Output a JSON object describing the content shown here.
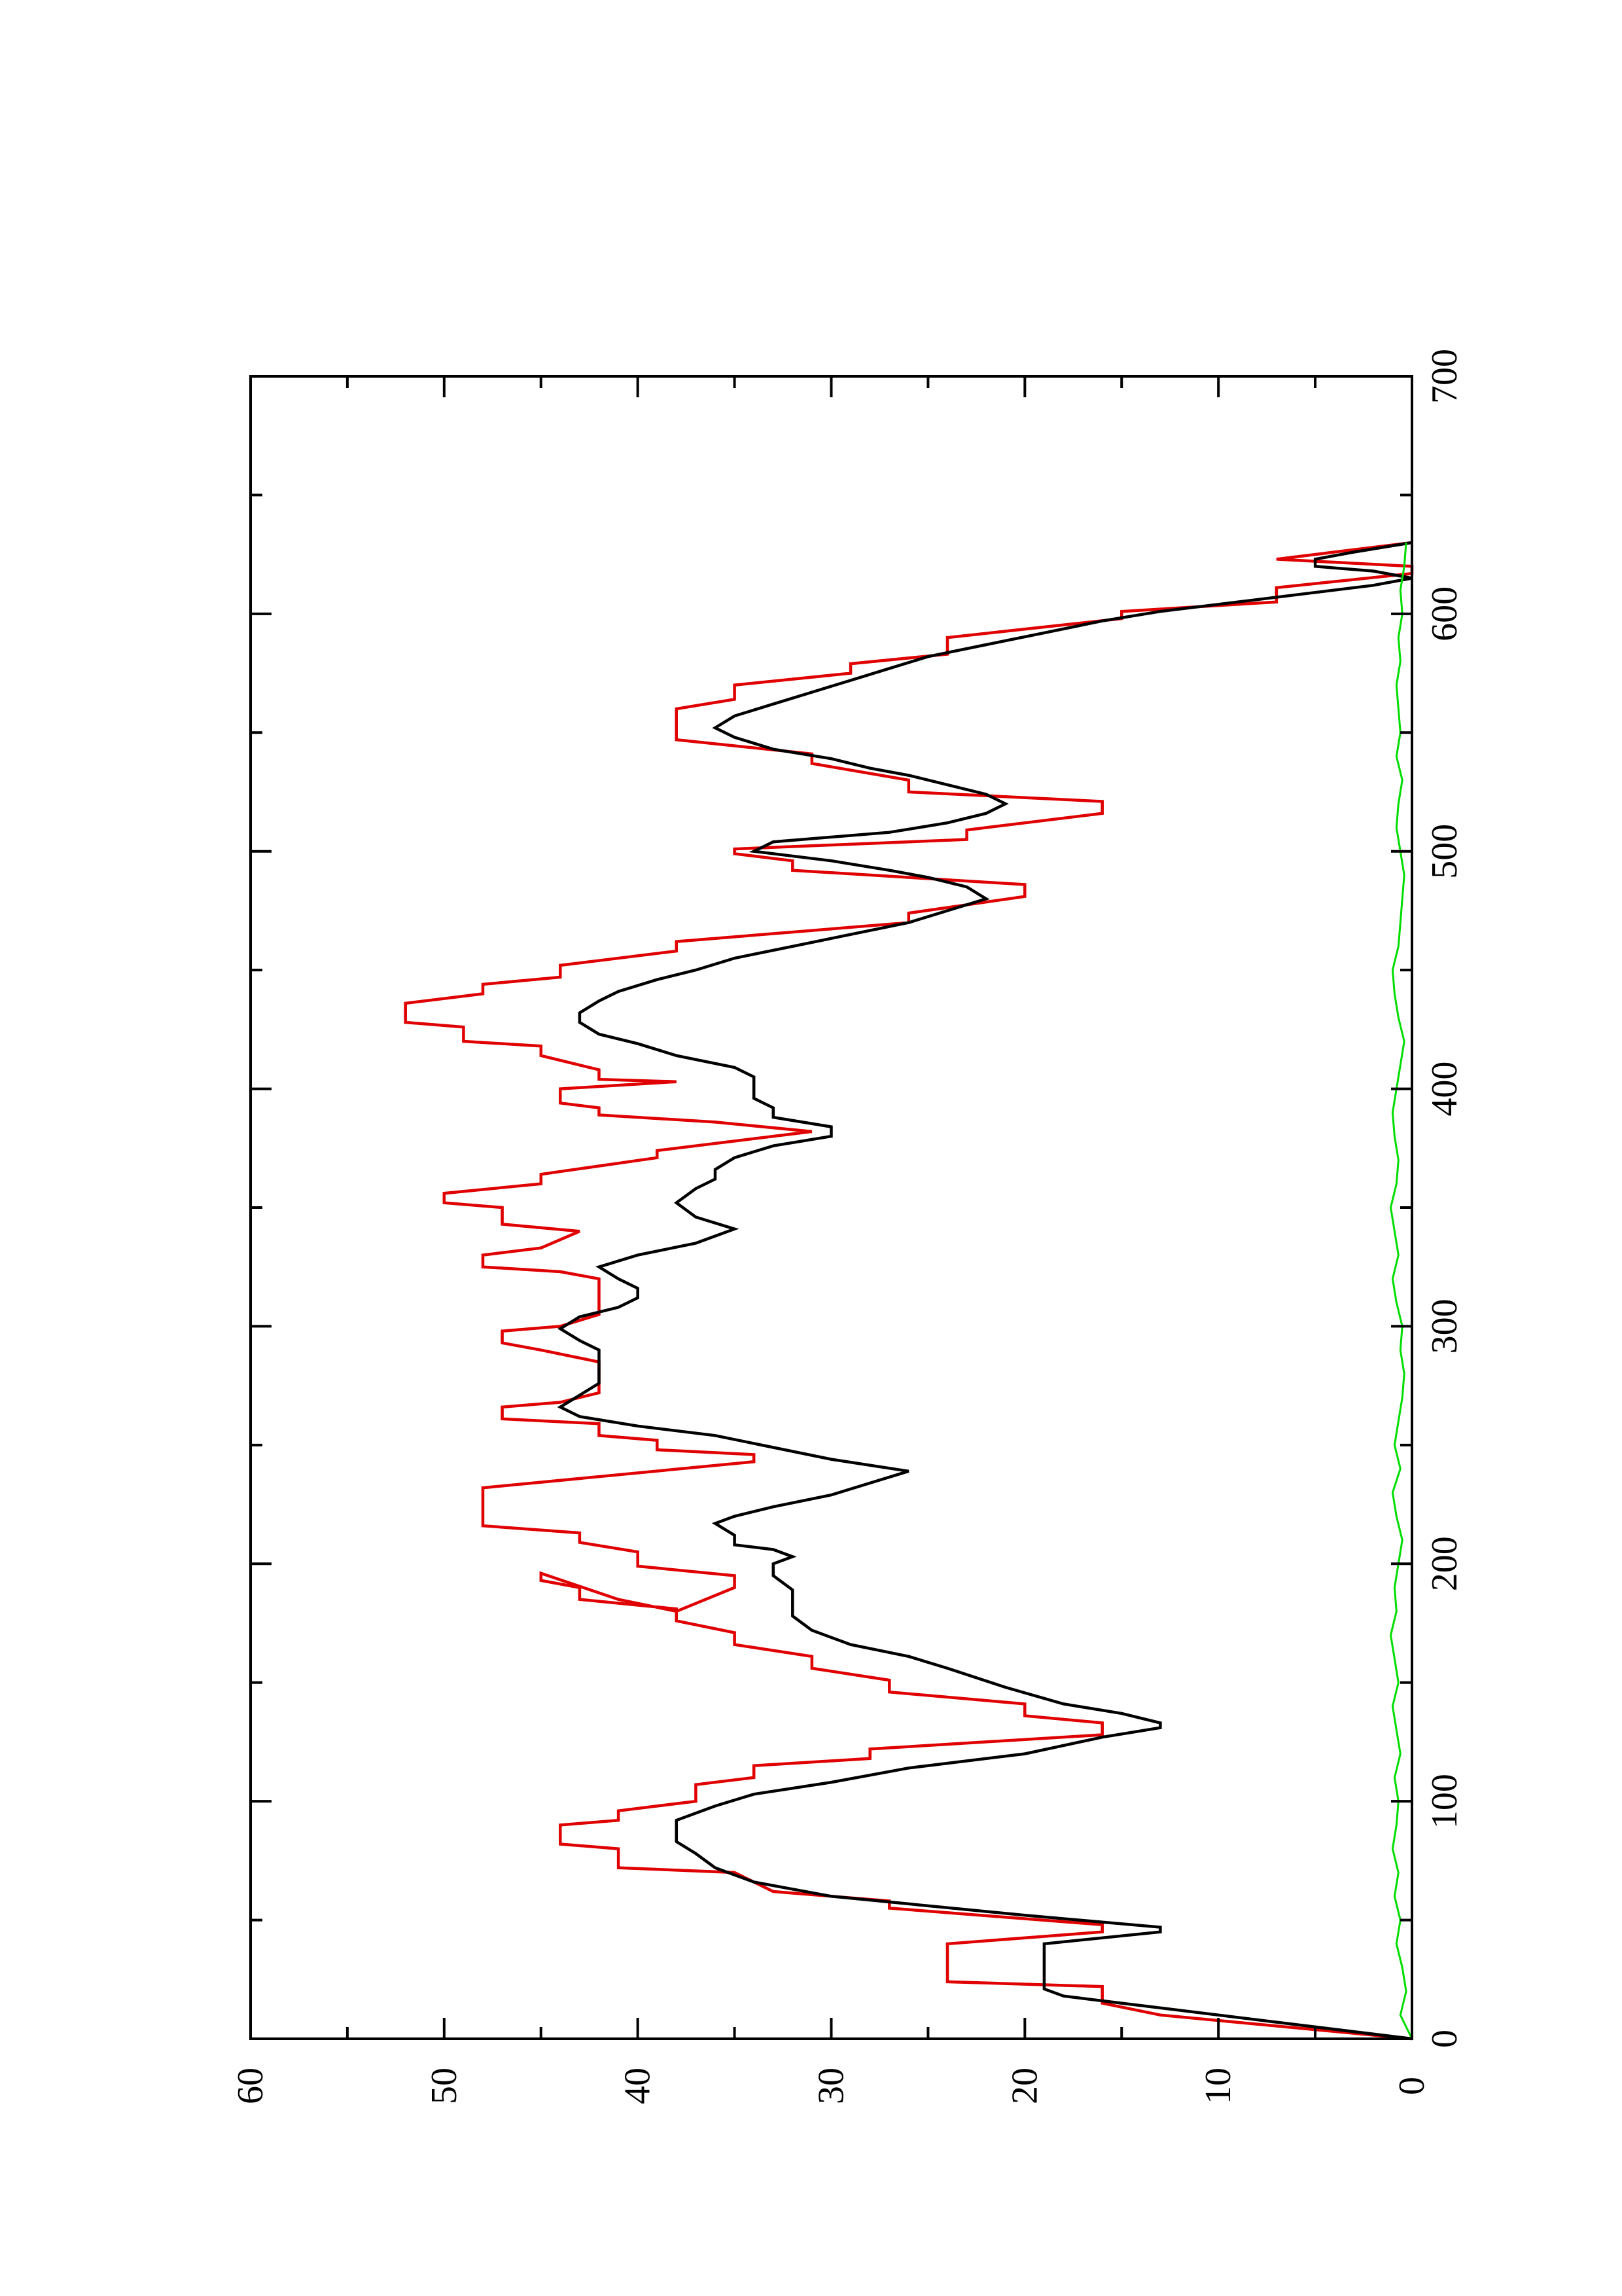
{
  "chart_data": {
    "type": "line",
    "orientation": "rotated-90-ccw",
    "title": "",
    "xlabel": "",
    "ylabel": "",
    "xlim": [
      0,
      700
    ],
    "ylim": [
      0,
      60
    ],
    "xticks": [
      "0",
      "100",
      "200",
      "300",
      "400",
      "500",
      "600",
      "700"
    ],
    "yticks": [
      "0",
      "10",
      "20",
      "30",
      "40",
      "50",
      "60"
    ],
    "grid": false,
    "legend": "none",
    "series": [
      {
        "color": "#e00000",
        "step": true,
        "points": [
          [
            0,
            0
          ],
          [
            10,
            13
          ],
          [
            15,
            16
          ],
          [
            22,
            16
          ],
          [
            24,
            24
          ],
          [
            40,
            24
          ],
          [
            45,
            16
          ],
          [
            48,
            16
          ],
          [
            55,
            27
          ],
          [
            58,
            27
          ],
          [
            62,
            33
          ],
          [
            70,
            35
          ],
          [
            72,
            41
          ],
          [
            80,
            41
          ],
          [
            82,
            44
          ],
          [
            90,
            44
          ],
          [
            92,
            41
          ],
          [
            96,
            41
          ],
          [
            100,
            37
          ],
          [
            107,
            37
          ],
          [
            110,
            34
          ],
          [
            115,
            34
          ],
          [
            118,
            28
          ],
          [
            122,
            28
          ],
          [
            128,
            16
          ],
          [
            133,
            16
          ],
          [
            136,
            20
          ],
          [
            141,
            20
          ],
          [
            146,
            27
          ],
          [
            151,
            27
          ],
          [
            156,
            31
          ],
          [
            161,
            31
          ],
          [
            166,
            35
          ],
          [
            171,
            35
          ],
          [
            176,
            38
          ],
          [
            181,
            38
          ],
          [
            185,
            43
          ],
          [
            190,
            43
          ],
          [
            193,
            45
          ],
          [
            196,
            45
          ],
          [
            185,
            41
          ],
          [
            180,
            38
          ],
          [
            190,
            35
          ],
          [
            195,
            35
          ],
          [
            199,
            40
          ],
          [
            205,
            40
          ],
          [
            209,
            43
          ],
          [
            213,
            43
          ],
          [
            216,
            48
          ],
          [
            232,
            48
          ],
          [
            243,
            34
          ],
          [
            246,
            34
          ],
          [
            248,
            39
          ],
          [
            252,
            39
          ],
          [
            254,
            42
          ],
          [
            259,
            42
          ],
          [
            261,
            47
          ],
          [
            266,
            47
          ],
          [
            268,
            44
          ],
          [
            272,
            42
          ],
          [
            285,
            42
          ],
          [
            290,
            45
          ],
          [
            293,
            47
          ],
          [
            298,
            47
          ],
          [
            300,
            44
          ],
          [
            305,
            42
          ],
          [
            320,
            42
          ],
          [
            323,
            44
          ],
          [
            325,
            48
          ],
          [
            330,
            48
          ],
          [
            333,
            45
          ],
          [
            340,
            43
          ],
          [
            343,
            47
          ],
          [
            350,
            47
          ],
          [
            352,
            50
          ],
          [
            356,
            50
          ],
          [
            360,
            45
          ],
          [
            364,
            45
          ],
          [
            371,
            39
          ],
          [
            374,
            39
          ],
          [
            382,
            31
          ],
          [
            386,
            36
          ],
          [
            389,
            42
          ],
          [
            392,
            42
          ],
          [
            394,
            44
          ],
          [
            400,
            44
          ],
          [
            403,
            38
          ],
          [
            404,
            42
          ],
          [
            408,
            42
          ],
          [
            414,
            45
          ],
          [
            418,
            45
          ],
          [
            420,
            49
          ],
          [
            426,
            49
          ],
          [
            428,
            52
          ],
          [
            436,
            52
          ],
          [
            440,
            48
          ],
          [
            444,
            48
          ],
          [
            447,
            44
          ],
          [
            452,
            44
          ],
          [
            458,
            38
          ],
          [
            462,
            38
          ],
          [
            470,
            26
          ],
          [
            474,
            26
          ],
          [
            481,
            20
          ],
          [
            486,
            20
          ],
          [
            492,
            32
          ],
          [
            496,
            32
          ],
          [
            499,
            35
          ],
          [
            501,
            35
          ],
          [
            505,
            23
          ],
          [
            509,
            23
          ],
          [
            516,
            16
          ],
          [
            521,
            16
          ],
          [
            525,
            26
          ],
          [
            530,
            26
          ],
          [
            537,
            31
          ],
          [
            541,
            31
          ],
          [
            547,
            38
          ],
          [
            560,
            38
          ],
          [
            564,
            35
          ],
          [
            570,
            35
          ],
          [
            575,
            29
          ],
          [
            579,
            29
          ],
          [
            583,
            24
          ],
          [
            590,
            24
          ],
          [
            598,
            15
          ],
          [
            601,
            15
          ],
          [
            605,
            7
          ],
          [
            611,
            7
          ],
          [
            617,
            0
          ],
          [
            620,
            0
          ],
          [
            623,
            7
          ],
          [
            625,
            5
          ],
          [
            630,
            0
          ]
        ]
      },
      {
        "color": "#000000",
        "step": false,
        "points": [
          [
            0,
            0
          ],
          [
            15,
            15
          ],
          [
            18,
            18
          ],
          [
            21,
            19
          ],
          [
            25,
            19
          ],
          [
            40,
            19
          ],
          [
            45,
            13
          ],
          [
            47,
            13
          ],
          [
            52,
            20
          ],
          [
            60,
            30
          ],
          [
            66,
            34
          ],
          [
            72,
            36
          ],
          [
            78,
            37
          ],
          [
            83,
            38
          ],
          [
            88,
            38
          ],
          [
            92,
            38
          ],
          [
            98,
            36
          ],
          [
            103,
            34
          ],
          [
            108,
            30
          ],
          [
            114,
            26
          ],
          [
            120,
            20
          ],
          [
            127,
            16
          ],
          [
            131,
            13
          ],
          [
            133,
            13
          ],
          [
            137,
            15
          ],
          [
            141,
            18
          ],
          [
            148,
            21
          ],
          [
            156,
            24
          ],
          [
            161,
            26
          ],
          [
            166,
            29
          ],
          [
            172,
            31
          ],
          [
            178,
            32
          ],
          [
            184,
            32
          ],
          [
            189,
            32
          ],
          [
            195,
            33
          ],
          [
            200,
            33
          ],
          [
            203,
            32
          ],
          [
            206,
            33
          ],
          [
            208,
            35
          ],
          [
            212,
            35
          ],
          [
            217,
            36
          ],
          [
            220,
            35
          ],
          [
            224,
            33
          ],
          [
            229,
            30
          ],
          [
            234,
            28
          ],
          [
            239,
            26
          ],
          [
            244,
            30
          ],
          [
            249,
            33
          ],
          [
            254,
            36
          ],
          [
            258,
            40
          ],
          [
            262,
            43
          ],
          [
            266,
            44
          ],
          [
            271,
            43
          ],
          [
            276,
            42
          ],
          [
            283,
            42
          ],
          [
            290,
            42
          ],
          [
            294,
            43
          ],
          [
            299,
            44
          ],
          [
            304,
            43
          ],
          [
            308,
            41
          ],
          [
            312,
            40
          ],
          [
            316,
            40
          ],
          [
            320,
            41
          ],
          [
            325,
            42
          ],
          [
            330,
            40
          ],
          [
            335,
            37
          ],
          [
            341,
            35
          ],
          [
            346,
            37
          ],
          [
            352,
            38
          ],
          [
            358,
            37
          ],
          [
            362,
            36
          ],
          [
            366,
            36
          ],
          [
            371,
            35
          ],
          [
            376,
            33
          ],
          [
            380,
            30
          ],
          [
            384,
            30
          ],
          [
            388,
            33
          ],
          [
            392,
            33
          ],
          [
            396,
            34
          ],
          [
            400,
            34
          ],
          [
            405,
            34
          ],
          [
            409,
            35
          ],
          [
            414,
            38
          ],
          [
            419,
            40
          ],
          [
            423,
            42
          ],
          [
            428,
            43
          ],
          [
            432,
            43
          ],
          [
            437,
            42
          ],
          [
            441,
            41
          ],
          [
            446,
            39
          ],
          [
            450,
            37
          ],
          [
            455,
            35
          ],
          [
            460,
            32
          ],
          [
            465,
            29
          ],
          [
            470,
            26
          ],
          [
            475,
            24
          ],
          [
            480,
            22
          ],
          [
            485,
            23
          ],
          [
            489,
            25
          ],
          [
            492,
            27
          ],
          [
            496,
            30
          ],
          [
            500,
            34
          ],
          [
            504,
            33
          ],
          [
            508,
            27
          ],
          [
            512,
            24
          ],
          [
            516,
            22
          ],
          [
            520,
            21
          ],
          [
            524,
            22
          ],
          [
            528,
            24
          ],
          [
            532,
            26
          ],
          [
            535,
            28
          ],
          [
            539,
            30
          ],
          [
            543,
            33
          ],
          [
            548,
            35
          ],
          [
            552,
            36
          ],
          [
            557,
            35
          ],
          [
            562,
            33
          ],
          [
            567,
            31
          ],
          [
            572,
            29
          ],
          [
            577,
            27
          ],
          [
            582,
            25
          ],
          [
            587,
            22
          ],
          [
            592,
            19
          ],
          [
            597,
            16
          ],
          [
            601,
            13
          ],
          [
            605,
            9
          ],
          [
            609,
            5
          ],
          [
            612,
            2
          ],
          [
            615,
            0
          ],
          [
            618,
            2
          ],
          [
            620,
            5
          ],
          [
            623,
            5
          ],
          [
            626,
            3
          ],
          [
            630,
            0
          ]
        ]
      },
      {
        "color": "#00dd00",
        "step": false,
        "points": [
          [
            0,
            0
          ],
          [
            10,
            0.6
          ],
          [
            20,
            0.3
          ],
          [
            30,
            0.5
          ],
          [
            40,
            0.8
          ],
          [
            50,
            0.6
          ],
          [
            60,
            0.9
          ],
          [
            70,
            0.7
          ],
          [
            80,
            1.0
          ],
          [
            90,
            0.8
          ],
          [
            100,
            0.7
          ],
          [
            110,
            0.9
          ],
          [
            120,
            0.6
          ],
          [
            130,
            0.8
          ],
          [
            140,
            1.0
          ],
          [
            150,
            0.7
          ],
          [
            160,
            0.9
          ],
          [
            170,
            1.1
          ],
          [
            180,
            0.8
          ],
          [
            190,
            0.9
          ],
          [
            200,
            0.7
          ],
          [
            210,
            0.5
          ],
          [
            220,
            0.8
          ],
          [
            230,
            1.0
          ],
          [
            240,
            0.6
          ],
          [
            250,
            0.9
          ],
          [
            260,
            0.7
          ],
          [
            270,
            0.5
          ],
          [
            280,
            0.4
          ],
          [
            290,
            0.6
          ],
          [
            300,
            0.5
          ],
          [
            310,
            0.8
          ],
          [
            320,
            1.0
          ],
          [
            330,
            0.7
          ],
          [
            340,
            0.9
          ],
          [
            350,
            1.1
          ],
          [
            360,
            0.8
          ],
          [
            370,
            0.7
          ],
          [
            380,
            0.9
          ],
          [
            390,
            1.0
          ],
          [
            400,
            0.8
          ],
          [
            410,
            0.6
          ],
          [
            420,
            0.4
          ],
          [
            430,
            0.7
          ],
          [
            440,
            0.9
          ],
          [
            450,
            1.0
          ],
          [
            460,
            0.7
          ],
          [
            470,
            0.6
          ],
          [
            480,
            0.5
          ],
          [
            490,
            0.4
          ],
          [
            500,
            0.6
          ],
          [
            510,
            0.8
          ],
          [
            520,
            0.7
          ],
          [
            530,
            0.5
          ],
          [
            540,
            0.8
          ],
          [
            550,
            0.6
          ],
          [
            560,
            0.7
          ],
          [
            570,
            0.8
          ],
          [
            580,
            0.6
          ],
          [
            590,
            0.7
          ],
          [
            600,
            0.5
          ],
          [
            610,
            0.6
          ],
          [
            620,
            0.4
          ],
          [
            630,
            0.3
          ]
        ]
      }
    ]
  }
}
